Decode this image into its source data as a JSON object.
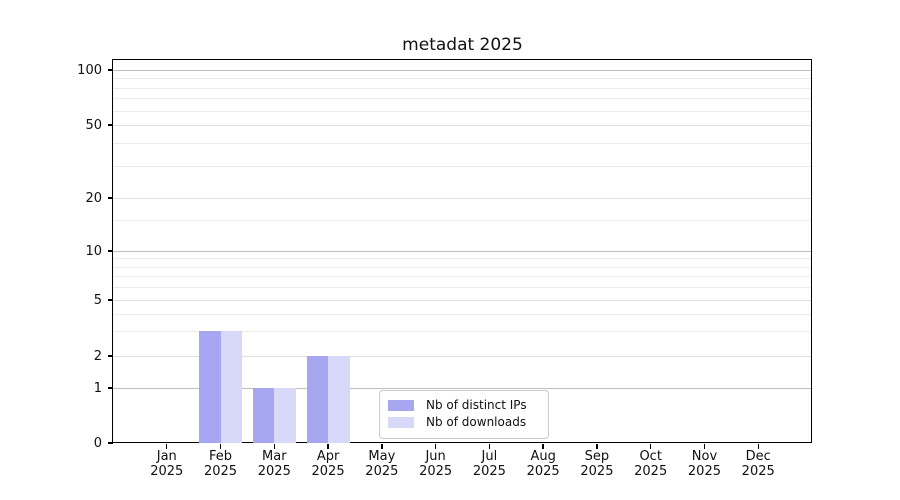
{
  "figure": {
    "title": "metadat 2025"
  },
  "chart_data": {
    "type": "bar",
    "title": "metadat 2025",
    "year": "2025",
    "months": [
      "Jan",
      "Feb",
      "Mar",
      "Apr",
      "May",
      "Jun",
      "Jul",
      "Aug",
      "Sep",
      "Oct",
      "Nov",
      "Dec"
    ],
    "categories": [
      "Jan 2025",
      "Feb 2025",
      "Mar 2025",
      "Apr 2025",
      "May 2025",
      "Jun 2025",
      "Jul 2025",
      "Aug 2025",
      "Sep 2025",
      "Oct 2025",
      "Nov 2025",
      "Dec 2025"
    ],
    "series": [
      {
        "name": "Nb of distinct IPs",
        "color": "#a6a6f1",
        "values": [
          0,
          3,
          1,
          2,
          0,
          0,
          0,
          0,
          0,
          0,
          0,
          0
        ]
      },
      {
        "name": "Nb of downloads",
        "color": "#d8d8f8",
        "values": [
          0,
          3,
          1,
          2,
          0,
          0,
          0,
          0,
          0,
          0,
          0,
          0
        ]
      }
    ],
    "y_axis": {
      "scale": "quasi-log",
      "range": [
        0,
        100
      ],
      "major_ticks": [
        0,
        1,
        2,
        5,
        10,
        20,
        50,
        100
      ],
      "strong_grid_ticks": [
        1,
        10,
        100
      ],
      "minor_ticks": [
        3,
        4,
        6,
        7,
        8,
        9,
        15,
        30,
        40,
        60,
        70,
        80,
        90
      ]
    },
    "xlabel": "",
    "ylabel": "",
    "grid": true,
    "legend": {
      "position": "lower center",
      "entries": [
        "Nb of distinct IPs",
        "Nb of downloads"
      ]
    },
    "colors": {
      "spine": "#000000",
      "grid_strong": "#bfbfbf",
      "grid_weak": "#dedede",
      "grid_minor": "#ebebeb",
      "text": "#111111",
      "legend_border": "#cccccc",
      "background": "#ffffff"
    }
  }
}
